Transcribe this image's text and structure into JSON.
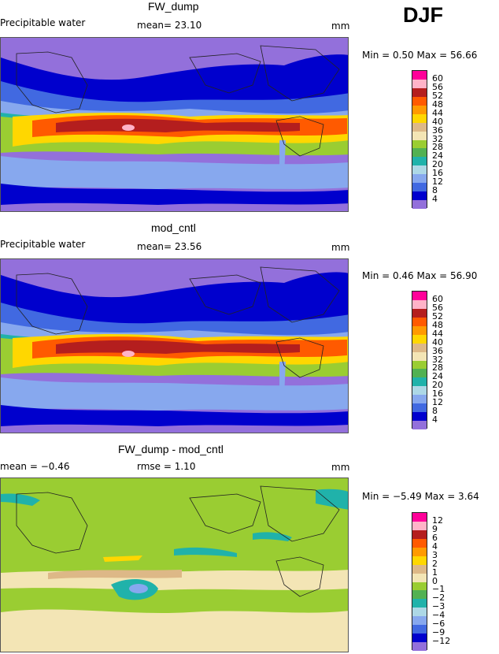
{
  "season": "DJF",
  "panels": [
    {
      "title": "FW_dump",
      "variable": "Precipitable water",
      "stat_line": "mean=   23.10",
      "unit": "mm",
      "minmax": "Min =    0.50 Max =   56.66",
      "levels": [
        "60",
        "56",
        "52",
        "48",
        "44",
        "40",
        "36",
        "32",
        "28",
        "24",
        "20",
        "16",
        "12",
        "8",
        "4"
      ],
      "colors": [
        "#ff0099",
        "#ffb3c8",
        "#b41e1e",
        "#ff5a00",
        "#ff9a00",
        "#ffd700",
        "#ddb887",
        "#f3e5b5",
        "#9acd32",
        "#52b152",
        "#20b2aa",
        "#add8e6",
        "#87a8ee",
        "#4169e1",
        "#0000cd",
        "#9370db"
      ]
    },
    {
      "title": "mod_cntl",
      "variable": "Precipitable water",
      "stat_line": "mean=   23.56",
      "unit": "mm",
      "minmax": "Min =    0.46 Max =   56.90",
      "levels": [
        "60",
        "56",
        "52",
        "48",
        "44",
        "40",
        "36",
        "32",
        "28",
        "24",
        "20",
        "16",
        "12",
        "8",
        "4"
      ],
      "colors": [
        "#ff0099",
        "#ffb3c8",
        "#b41e1e",
        "#ff5a00",
        "#ff9a00",
        "#ffd700",
        "#ddb887",
        "#f3e5b5",
        "#9acd32",
        "#52b152",
        "#20b2aa",
        "#add8e6",
        "#87a8ee",
        "#4169e1",
        "#0000cd",
        "#9370db"
      ]
    },
    {
      "title": "FW_dump - mod_cntl",
      "variable": "mean =  −0.46",
      "stat_line": "rmse =    1.10",
      "unit": "mm",
      "minmax": "Min =  −5.49 Max =    3.64",
      "levels": [
        "12",
        "9",
        "6",
        "4",
        "3",
        "2",
        "1",
        "0",
        "−1",
        "−2",
        "−3",
        "−4",
        "−6",
        "−9",
        "−12"
      ],
      "colors": [
        "#ff0099",
        "#ffb3c8",
        "#b41e1e",
        "#ff5a00",
        "#ff9a00",
        "#ffd700",
        "#ddb887",
        "#f3e5b5",
        "#9acd32",
        "#52b152",
        "#20b2aa",
        "#add8e6",
        "#87a8ee",
        "#4169e1",
        "#0000cd",
        "#9370db"
      ]
    }
  ],
  "chart_data": [
    {
      "type": "heatmap",
      "title": "FW_dump",
      "ylabel": "Precipitable water",
      "unit": "mm",
      "mean": 23.1,
      "min": 0.5,
      "max": 56.66,
      "levels": [
        4,
        8,
        12,
        16,
        20,
        24,
        28,
        32,
        36,
        40,
        44,
        48,
        52,
        56,
        60
      ]
    },
    {
      "type": "heatmap",
      "title": "mod_cntl",
      "ylabel": "Precipitable water",
      "unit": "mm",
      "mean": 23.56,
      "min": 0.46,
      "max": 56.9,
      "levels": [
        4,
        8,
        12,
        16,
        20,
        24,
        28,
        32,
        36,
        40,
        44,
        48,
        52,
        56,
        60
      ]
    },
    {
      "type": "heatmap",
      "title": "FW_dump - mod_cntl",
      "unit": "mm",
      "mean": -0.46,
      "rmse": 1.1,
      "min": -5.49,
      "max": 3.64,
      "levels": [
        -12,
        -9,
        -6,
        -4,
        -3,
        -2,
        -1,
        0,
        1,
        2,
        3,
        4,
        6,
        9,
        12
      ]
    }
  ]
}
